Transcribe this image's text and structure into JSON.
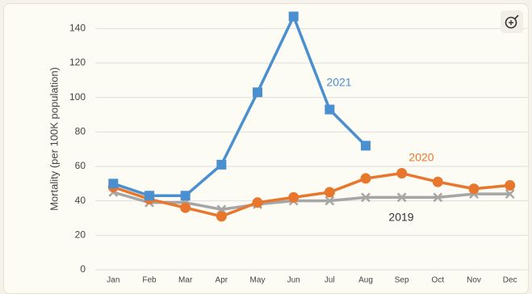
{
  "chart_data": {
    "type": "line",
    "y_label": "Mortality (per 100K population)",
    "categories": [
      "Jan",
      "Feb",
      "Mar",
      "Apr",
      "May",
      "Jun",
      "Jul",
      "Aug",
      "Sep",
      "Oct",
      "Nov",
      "Dec"
    ],
    "series": [
      {
        "name": "2021",
        "color": "#4a90d0",
        "marker": "square",
        "values": [
          50,
          43,
          43,
          61,
          103,
          147,
          93,
          72,
          null,
          null,
          null,
          null
        ]
      },
      {
        "name": "2020",
        "color": "#e8772e",
        "marker": "circle",
        "values": [
          48,
          41,
          36,
          31,
          39,
          42,
          45,
          53,
          56,
          51,
          47,
          49
        ]
      },
      {
        "name": "2019",
        "color": "#a6a6a6",
        "marker": "x",
        "values": [
          45,
          39,
          39,
          35,
          38,
          40,
          40,
          42,
          42,
          42,
          44,
          44
        ]
      }
    ],
    "ylim": [
      0,
      150
    ],
    "yticks": [
      0,
      20,
      40,
      60,
      80,
      100,
      120,
      140
    ],
    "grid": true
  }
}
